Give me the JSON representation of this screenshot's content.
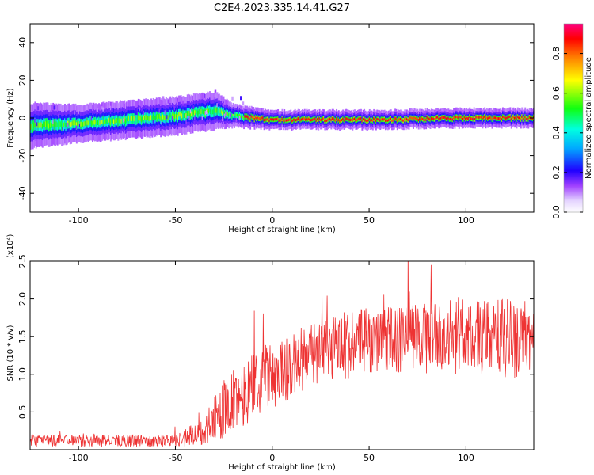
{
  "title": "C2E4.2023.335.14.41.G27",
  "chart_data": [
    {
      "type": "heatmap",
      "xlabel": "Height of straight line (km)",
      "ylabel": "Frequency (Hz)",
      "xlim": [
        -125,
        135
      ],
      "ylim": [
        -50,
        50
      ],
      "x_ticks": [
        -100,
        -50,
        0,
        50,
        100
      ],
      "y_ticks": [
        -40,
        -20,
        0,
        20,
        40
      ],
      "colorbar": {
        "label": "Normalized spectral amplitude",
        "ticks": [
          "0.0",
          "0.2",
          "0.4",
          "0.6",
          "0.8"
        ],
        "range": [
          0,
          0.95
        ]
      },
      "ridge": [
        {
          "x": -125,
          "f_center": -4,
          "halfwidth": 6
        },
        {
          "x": -100,
          "f_center": -3,
          "halfwidth": 5
        },
        {
          "x": -75,
          "f_center": -1,
          "halfwidth": 5
        },
        {
          "x": -50,
          "f_center": 1,
          "halfwidth": 5
        },
        {
          "x": -30,
          "f_center": 4,
          "halfwidth": 5
        },
        {
          "x": -20,
          "f_center": 1,
          "halfwidth": 3
        },
        {
          "x": 0,
          "f_center": -1,
          "halfwidth": 2.5
        },
        {
          "x": 50,
          "f_center": -1,
          "halfwidth": 2.5
        },
        {
          "x": 100,
          "f_center": 0,
          "halfwidth": 2.5
        },
        {
          "x": 135,
          "f_center": 0,
          "halfwidth": 2.5
        }
      ]
    },
    {
      "type": "line",
      "xlabel": "Height of straight line (km)",
      "ylabel": "SNR (10 * v/v)",
      "y_scale_note": "(x10⁴)",
      "xlim": [
        -125,
        135
      ],
      "ylim": [
        0,
        2.5
      ],
      "x_ticks": [
        -100,
        -50,
        0,
        50,
        100
      ],
      "y_ticks": [
        0.5,
        1.0,
        1.5,
        2.0,
        2.5
      ],
      "color": "#ee3333",
      "envelope": [
        {
          "x": -125,
          "mean": 0.12,
          "spread": 0.08
        },
        {
          "x": -50,
          "mean": 0.12,
          "spread": 0.08
        },
        {
          "x": -35,
          "mean": 0.25,
          "spread": 0.2
        },
        {
          "x": -25,
          "mean": 0.55,
          "spread": 0.4
        },
        {
          "x": -10,
          "mean": 0.85,
          "spread": 0.45
        },
        {
          "x": 0,
          "mean": 1.0,
          "spread": 0.45
        },
        {
          "x": 25,
          "mean": 1.3,
          "spread": 0.45
        },
        {
          "x": 50,
          "mean": 1.45,
          "spread": 0.45
        },
        {
          "x": 100,
          "mean": 1.5,
          "spread": 0.5
        },
        {
          "x": 135,
          "mean": 1.45,
          "spread": 0.55
        }
      ]
    }
  ]
}
